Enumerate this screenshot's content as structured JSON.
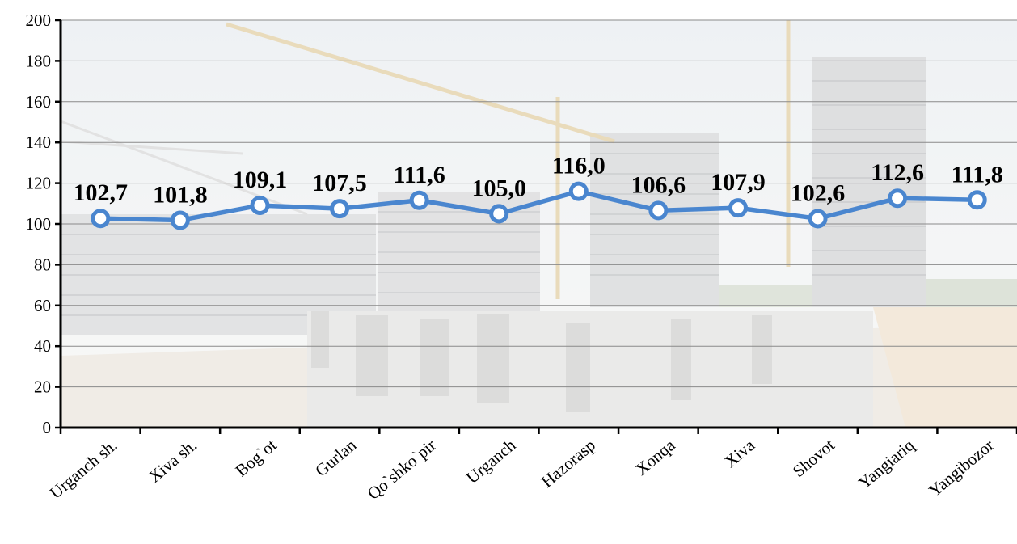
{
  "chart_data": {
    "type": "line",
    "categories": [
      "Urganch sh.",
      "Xiva sh.",
      "Bog`ot",
      "Gurlan",
      "Qo`shko`pir",
      "Urganch",
      "Hazorasp",
      "Xonqa",
      "Xiva",
      "Shovot",
      "Yangiariq",
      "Yangibozor"
    ],
    "series": [
      {
        "values": [
          102.7,
          101.8,
          109.1,
          107.5,
          111.6,
          105.0,
          116.0,
          106.6,
          107.9,
          102.6,
          112.6,
          111.8
        ],
        "data_labels": [
          "102,7",
          "101,8",
          "109,1",
          "107,5",
          "111,6",
          "105,0",
          "116,0",
          "106,6",
          "107,9",
          "102,6",
          "112,6",
          "111,8"
        ],
        "color": "#4A86CF"
      }
    ],
    "ylim": [
      0,
      200
    ],
    "yticks": [
      0,
      20,
      40,
      60,
      80,
      100,
      120,
      140,
      160,
      180,
      200
    ],
    "grid": true,
    "background": "construction-site-photo"
  }
}
